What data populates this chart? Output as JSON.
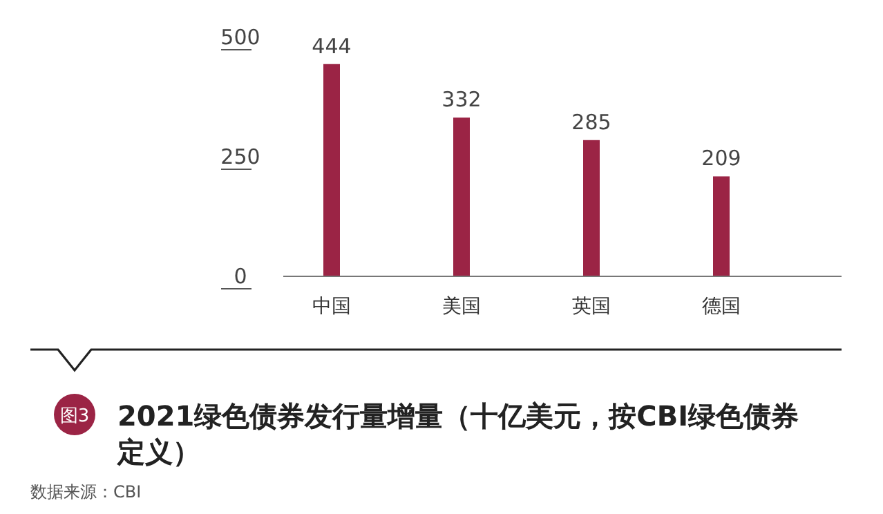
{
  "chart_data": {
    "type": "bar",
    "title": "2021绿色债券发行量增量（十亿美元，按CBI绿色债券定义）",
    "categories": [
      "中国",
      "美国",
      "英国",
      "德国"
    ],
    "values": [
      444,
      332,
      285,
      209
    ],
    "color": "#9b2445",
    "ylim": [
      0,
      500
    ],
    "yticks": [
      0,
      250,
      500
    ],
    "grid": false,
    "data_labels": true,
    "annotations": [
      "图3",
      "数据来源：CBI"
    ]
  }
}
